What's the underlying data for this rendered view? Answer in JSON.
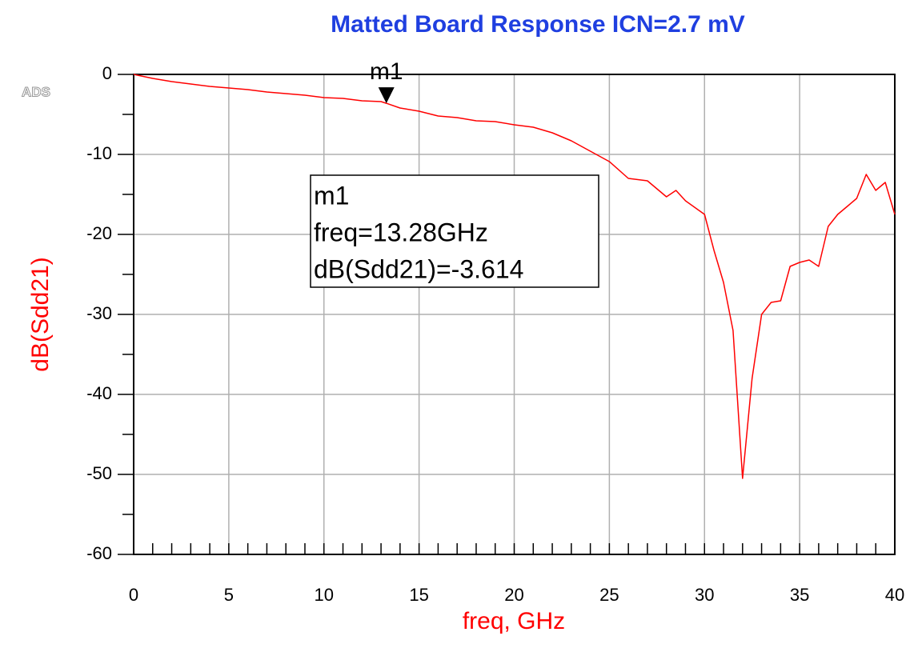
{
  "chart_data": {
    "type": "line",
    "title": "Matted Board Response ICN=2.7 mV",
    "logo": "ADS",
    "x_label": "freq, GHz",
    "y_label": "dB(Sdd21)",
    "series": [
      {
        "name": "dB(Sdd21)",
        "color": "#ff0000",
        "x": [
          0,
          1,
          2,
          3,
          4,
          5,
          6,
          7,
          8,
          9,
          10,
          11,
          12,
          13,
          13.28,
          14,
          15,
          16,
          17,
          18,
          19,
          20,
          21,
          22,
          23,
          24,
          25,
          26,
          27,
          28,
          28.5,
          29,
          30,
          30.5,
          31,
          31.5,
          32,
          32.5,
          33,
          33.5,
          34,
          34.5,
          35,
          35.5,
          36,
          36.5,
          37,
          37.5,
          38,
          38.5,
          39,
          39.5,
          40
        ],
        "values": [
          0,
          -0.5,
          -0.9,
          -1.2,
          -1.5,
          -1.7,
          -1.9,
          -2.2,
          -2.4,
          -2.6,
          -2.9,
          -3.0,
          -3.3,
          -3.4,
          -3.614,
          -4.2,
          -4.6,
          -5.2,
          -5.4,
          -5.8,
          -5.9,
          -6.3,
          -6.6,
          -7.3,
          -8.3,
          -9.6,
          -10.9,
          -13.0,
          -13.3,
          -15.3,
          -14.5,
          -15.8,
          -17.5,
          -22,
          -26,
          -32,
          -50.5,
          -38,
          -30,
          -28.5,
          -28.3,
          -24,
          -23.5,
          -23.2,
          -24,
          -19,
          -17.5,
          -16.5,
          -15.5,
          -12.5,
          -14.5,
          -13.5,
          -17.5
        ]
      }
    ],
    "xlim": [
      0,
      40
    ],
    "xticks": [
      0,
      5,
      10,
      15,
      20,
      25,
      30,
      35,
      40
    ],
    "ylim": [
      -60,
      0
    ],
    "yticks": [
      0,
      -10,
      -20,
      -30,
      -40,
      -50,
      -60
    ],
    "xminorticks": [
      1,
      2,
      3,
      4,
      6,
      7,
      8,
      9,
      11,
      12,
      13,
      14,
      16,
      17,
      18,
      19,
      21,
      22,
      23,
      24,
      26,
      27,
      28,
      29,
      31,
      32,
      33,
      34,
      36,
      37,
      38,
      39
    ],
    "yminorticks": [
      -5,
      -15,
      -25,
      -35,
      -45,
      -55
    ],
    "grid": true,
    "marker": {
      "name": "m1",
      "x": 13.28,
      "y": -3.614,
      "readout": [
        "m1",
        "freq=13.28GHz",
        "dB(Sdd21)=-3.614"
      ]
    }
  }
}
